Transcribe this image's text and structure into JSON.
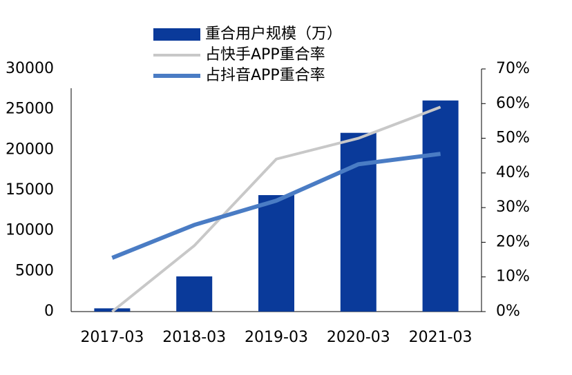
{
  "chart_data": {
    "type": "bar-line",
    "categories": [
      "2017-03",
      "2018-03",
      "2019-03",
      "2020-03",
      "2021-03"
    ],
    "series": [
      {
        "name": "重合用户规模（万）",
        "type": "bar",
        "color": "#0a3a9a",
        "values": [
          400,
          4350,
          14400,
          22100,
          26100
        ]
      },
      {
        "name": "占快手APP重合率",
        "type": "line",
        "axis": "y2",
        "color": "#c8c8c8",
        "values": [
          0,
          19,
          44,
          50,
          59
        ]
      },
      {
        "name": "占抖音APP重合率",
        "type": "line",
        "axis": "y2",
        "color": "#4a7cc4",
        "values": [
          15.5,
          25,
          32,
          42.5,
          45.5
        ]
      }
    ],
    "ylim": [
      0,
      30000
    ],
    "yticks": [
      0,
      5000,
      10000,
      15000,
      20000,
      25000,
      30000
    ],
    "y2lim": [
      0,
      70
    ],
    "y2ticks": [
      {
        "value": 0,
        "label": "0%"
      },
      {
        "value": 10,
        "label": "10%"
      },
      {
        "value": 20,
        "label": "20%"
      },
      {
        "value": 30,
        "label": "30%"
      },
      {
        "value": 40,
        "label": "40%"
      },
      {
        "value": 50,
        "label": "50%"
      },
      {
        "value": 60,
        "label": "60%"
      },
      {
        "value": 70,
        "label": "70%"
      }
    ]
  }
}
